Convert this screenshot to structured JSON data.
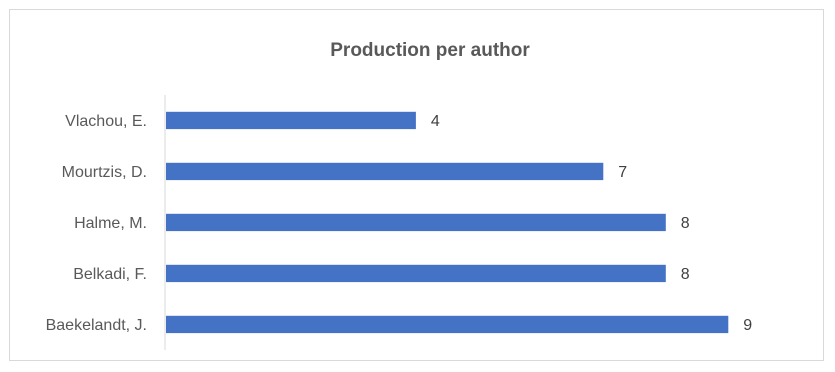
{
  "chart_data": {
    "type": "bar",
    "orientation": "horizontal",
    "title": "Production per author",
    "xlabel": "",
    "ylabel": "",
    "categories": [
      "Baekelandt, J.",
      "Belkadi, F.",
      "Halme, M.",
      "Mourtzis, D.",
      "Vlachou, E."
    ],
    "values": [
      9,
      8,
      8,
      7,
      4
    ],
    "xlim": [
      0,
      9.7
    ],
    "grid": false,
    "legend": "none",
    "data_labels": true,
    "bar_color": "#4472c4"
  }
}
